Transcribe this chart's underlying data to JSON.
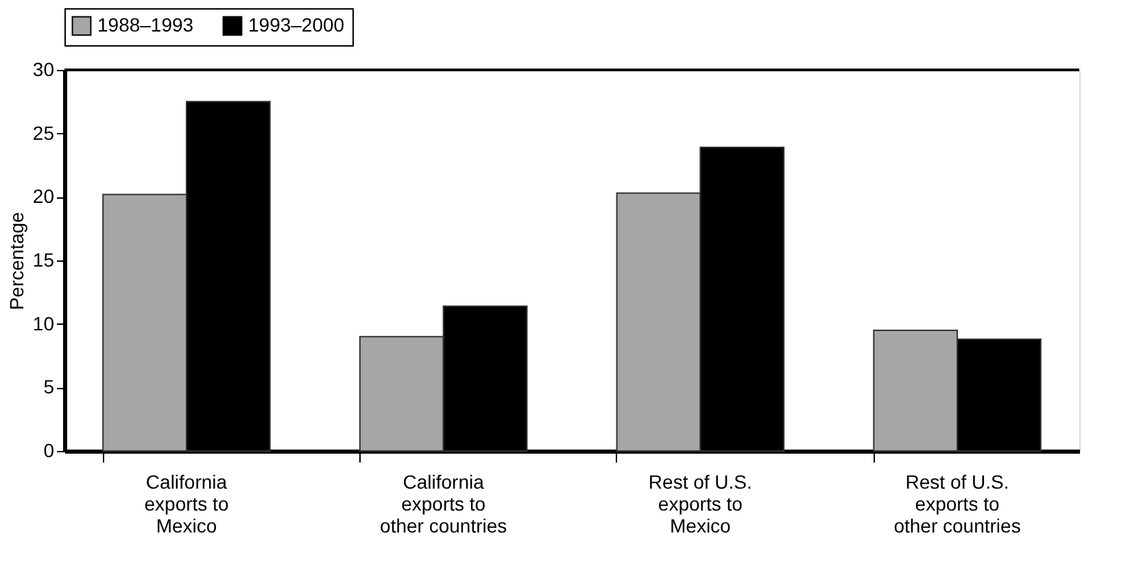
{
  "chart_data": {
    "type": "bar",
    "ylabel": "Percentage",
    "categories": [
      "California\nexports to\nMexico",
      "California\nexports to\nother countries",
      "Rest of U.S.\nexports to\nMexico",
      "Rest of U.S.\nexports to\nother countries"
    ],
    "series": [
      {
        "name": "1988–1993",
        "color": "#a6a6a6",
        "values": [
          20.2,
          9.0,
          20.3,
          9.5
        ]
      },
      {
        "name": "1993–2000",
        "color": "#000000",
        "values": [
          27.5,
          11.4,
          23.9,
          8.8
        ]
      }
    ],
    "ylim": [
      0,
      30
    ],
    "yticks": [
      0,
      5,
      10,
      15,
      20,
      25,
      30
    ],
    "grid": false,
    "legend": "top"
  }
}
